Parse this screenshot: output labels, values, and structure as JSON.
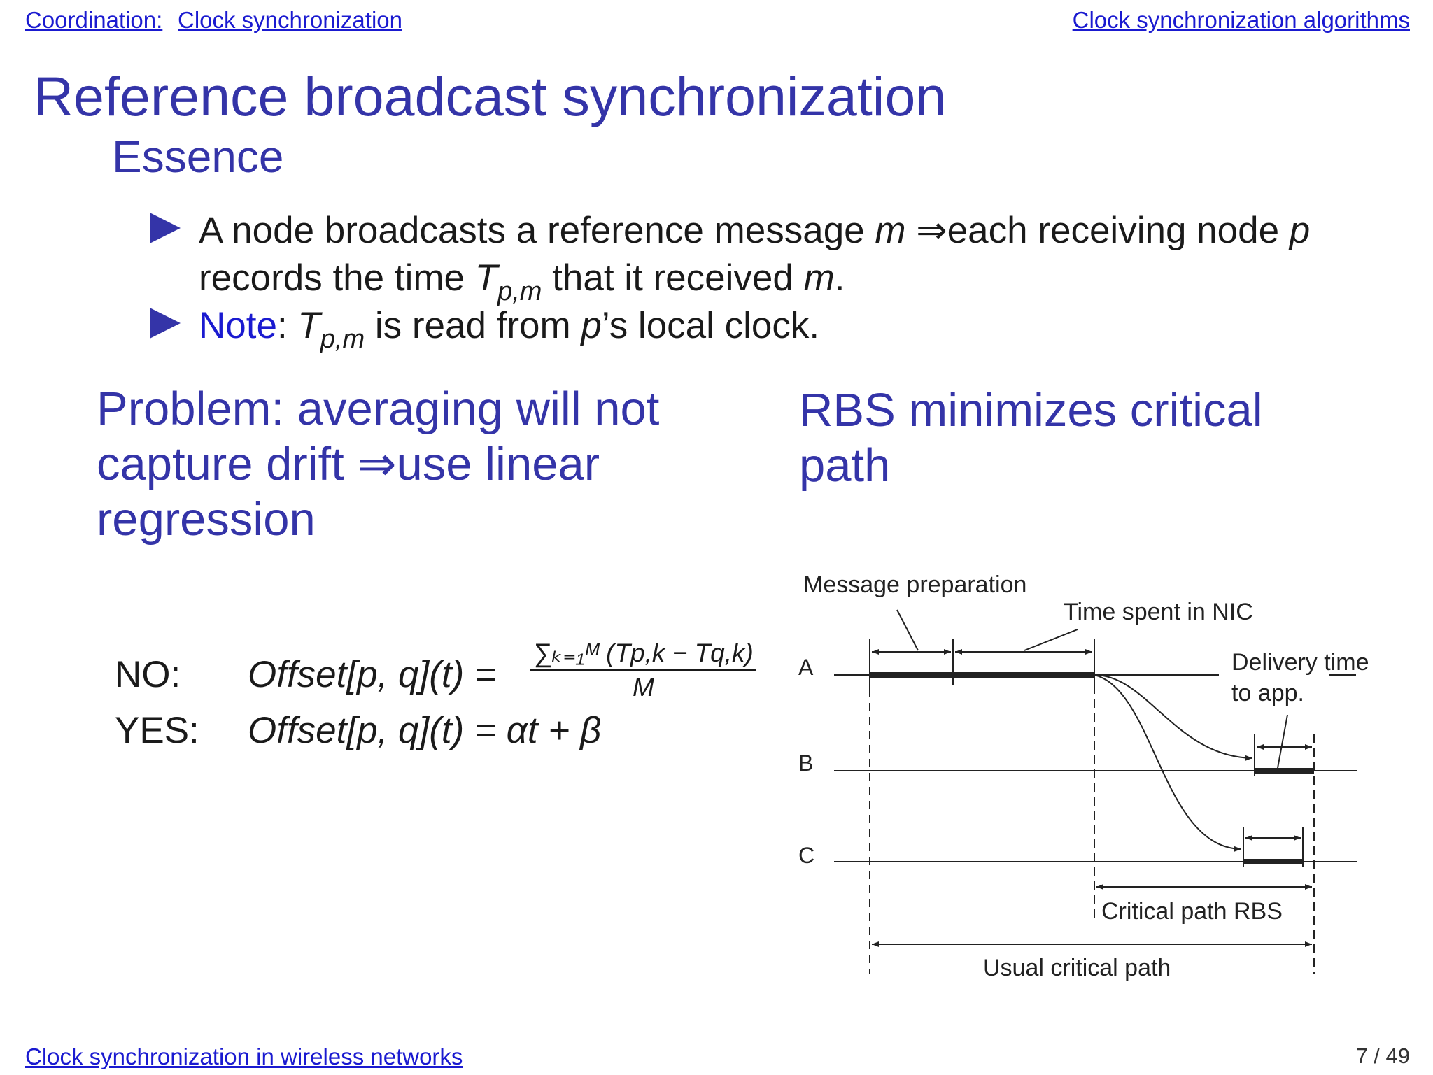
{
  "header": {
    "section": "Coordination:",
    "subsection": "Clock synchronization",
    "right": "Clock synchronization algorithms"
  },
  "title": "Reference broadcast synchronization",
  "subtitle": "Essence",
  "bullets": {
    "b1": {
      "t1": "A node broadcasts a reference message ",
      "m1": "m",
      "t2": " ⇒each receiving node ",
      "p": "p",
      "t3": " records the time ",
      "T": "T",
      "sub": "p,m",
      "t4": " that it received ",
      "m2": "m",
      "t5": "."
    },
    "b2": {
      "note": "Note",
      "t1": ": ",
      "T": "T",
      "sub": "p,m",
      "t2": " is read from ",
      "p": "p",
      "t3": "’s local clock."
    }
  },
  "problem": "Problem: averaging will not capture drift ⇒use linear regression",
  "rbs": "RBS minimizes critical path",
  "formula": {
    "no_label": "NO:",
    "yes_label": "YES:",
    "lhs": "Offset[p, q](t) =",
    "no_num": "∑ₖ₌₁ᴹ (Tp,k − Tq,k)",
    "no_den": "M",
    "yes_rhs": "αt + β"
  },
  "diagram": {
    "msg_prep": "Message preparation",
    "time_nic": "Time spent in NIC",
    "delivery1": "Delivery time",
    "delivery2": "to app.",
    "node_a": "A",
    "node_b": "B",
    "node_c": "C",
    "crit_rbs": "Critical path RBS",
    "usual_crit": "Usual critical path"
  },
  "footer": {
    "left": "Clock synchronization in wireless networks",
    "page": "7 / 49"
  }
}
